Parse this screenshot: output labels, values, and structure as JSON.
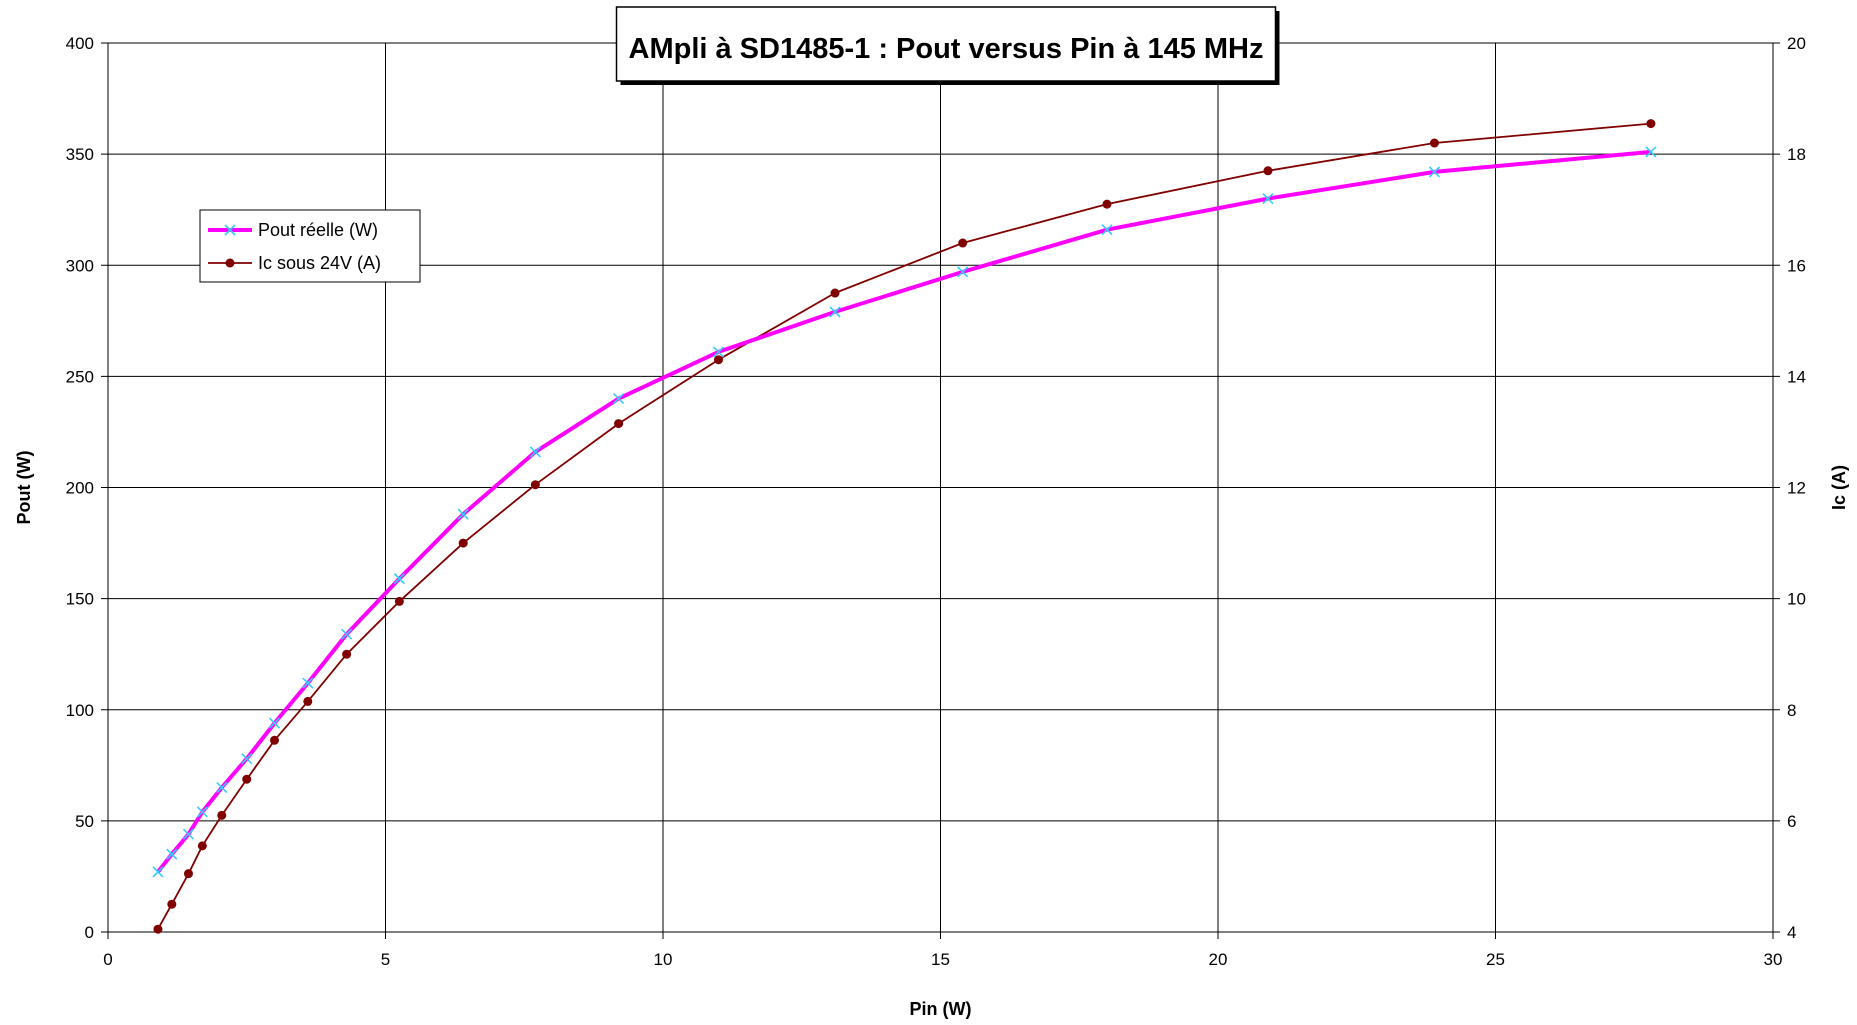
{
  "chart_data": {
    "type": "line",
    "title": "AMpli à SD1485-1 : Pout versus Pin à 145 MHz",
    "xlabel": "Pin (W)",
    "ylabel": "Pout (W)",
    "y2label": "Ic (A)",
    "xlim": [
      0,
      30
    ],
    "ylim": [
      0,
      400
    ],
    "y2lim": [
      4,
      20
    ],
    "x_ticks": [
      0,
      5,
      10,
      15,
      20,
      25,
      30
    ],
    "y_ticks": [
      0,
      50,
      100,
      150,
      200,
      250,
      300,
      350,
      400
    ],
    "y2_ticks": [
      4,
      6,
      8,
      10,
      12,
      14,
      16,
      18,
      20
    ],
    "grid": true,
    "legend_position": "upper-left",
    "series": [
      {
        "name": "Pout réelle (W)",
        "axis": "left",
        "color": "#ff00ff",
        "marker_color": "#33ccff",
        "marker": "x",
        "points": [
          [
            0.9,
            27
          ],
          [
            1.15,
            35
          ],
          [
            1.45,
            44
          ],
          [
            1.7,
            54
          ],
          [
            2.05,
            65
          ],
          [
            2.5,
            78
          ],
          [
            3.0,
            94
          ],
          [
            3.6,
            112
          ],
          [
            4.3,
            134
          ],
          [
            5.25,
            159
          ],
          [
            6.4,
            188
          ],
          [
            7.7,
            216
          ],
          [
            9.2,
            240
          ],
          [
            11.0,
            261
          ],
          [
            13.1,
            279
          ],
          [
            15.4,
            297
          ],
          [
            18.0,
            316
          ],
          [
            20.9,
            330
          ],
          [
            23.9,
            342
          ],
          [
            27.8,
            351
          ]
        ]
      },
      {
        "name": "Ic sous 24V (A)",
        "axis": "right",
        "color": "#800000",
        "marker_color": "#800000",
        "marker": "dot",
        "points": [
          [
            0.9,
            4.05
          ],
          [
            1.15,
            4.5
          ],
          [
            1.45,
            5.05
          ],
          [
            1.7,
            5.55
          ],
          [
            2.05,
            6.1
          ],
          [
            2.5,
            6.75
          ],
          [
            3.0,
            7.45
          ],
          [
            3.6,
            8.15
          ],
          [
            4.3,
            9.0
          ],
          [
            5.25,
            9.95
          ],
          [
            6.4,
            11.0
          ],
          [
            7.7,
            12.05
          ],
          [
            9.2,
            13.15
          ],
          [
            11.0,
            14.3
          ],
          [
            13.1,
            15.5
          ],
          [
            15.4,
            16.4
          ],
          [
            18.0,
            17.1
          ],
          [
            20.9,
            17.7
          ],
          [
            23.9,
            18.2
          ],
          [
            27.8,
            18.55
          ]
        ]
      }
    ]
  }
}
